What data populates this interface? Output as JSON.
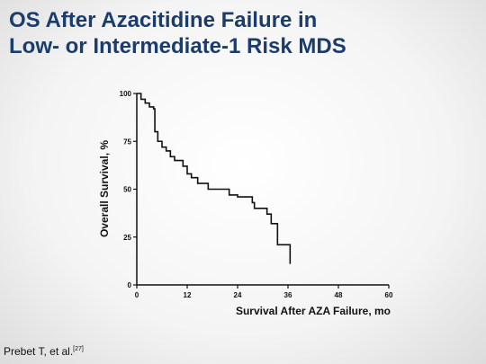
{
  "chart_data": {
    "type": "line",
    "title": [
      "OS After Azacitidine Failure in",
      "Low- or Intermediate-1 Risk MDS"
    ],
    "xlabel": "Survival After AZA Failure, mo",
    "ylabel": "Overall Survival, %",
    "x": [
      0,
      1,
      1,
      2,
      2,
      3,
      3,
      4,
      4,
      4.3,
      4.3,
      5,
      5,
      6,
      6,
      7,
      7,
      8,
      8,
      9,
      9,
      11,
      11,
      12,
      12,
      13,
      13,
      14.5,
      14.5,
      17,
      17,
      22,
      22,
      24,
      24,
      27.5,
      27.5,
      28,
      28,
      31,
      31,
      32,
      32,
      33.5,
      33.5,
      36.5,
      36.5
    ],
    "series": [
      {
        "color": "#111111",
        "values": [
          100,
          100,
          97,
          97,
          95,
          95,
          93,
          93,
          92,
          92,
          80,
          80,
          75,
          75,
          72,
          72,
          70,
          70,
          67,
          67,
          65,
          65,
          62,
          62,
          58,
          58,
          56,
          56,
          53,
          53,
          50,
          50,
          47,
          47,
          46,
          46,
          43,
          43,
          40,
          40,
          37,
          37,
          32,
          32,
          21,
          21,
          11
        ]
      }
    ],
    "xlim": [
      0,
      60
    ],
    "xticks": [
      0,
      12,
      24,
      36,
      48,
      60
    ],
    "ylim": [
      0,
      100
    ],
    "yticks": [
      0,
      25,
      50,
      75,
      100
    ],
    "grid": false,
    "citation": "Prebet T, et al.",
    "citation_ref": "[27]"
  }
}
